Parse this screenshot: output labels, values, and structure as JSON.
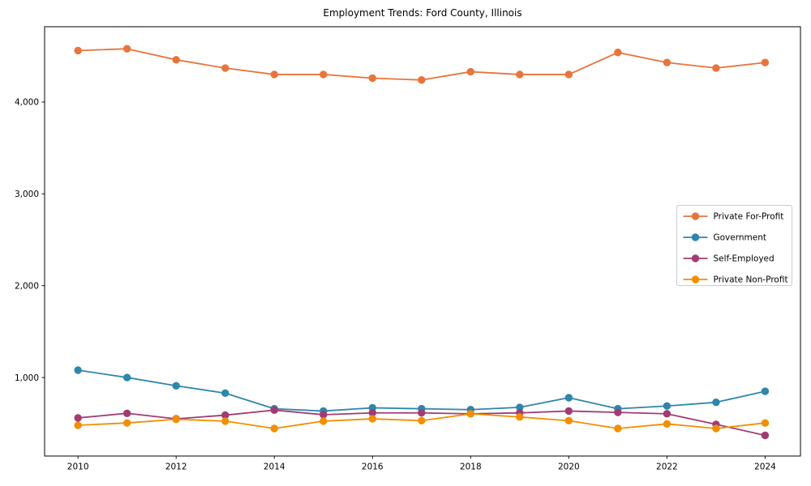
{
  "chart_data": {
    "type": "line",
    "title": "Employment Trends: Ford County, Illinois",
    "xlabel": "",
    "ylabel": "",
    "grid": false,
    "legend_position": "center-right",
    "xlim": [
      2009.32,
      2024.72
    ],
    "ylim": [
      145,
      4820
    ],
    "x_ticks": [
      2010,
      2012,
      2014,
      2016,
      2018,
      2020,
      2022,
      2024
    ],
    "y_ticks": [
      1000,
      2000,
      3000,
      4000
    ],
    "y_tick_labels": [
      "1,000",
      "2,000",
      "3,000",
      "4,000"
    ],
    "x": [
      2010,
      2011,
      2012,
      2013,
      2014,
      2015,
      2016,
      2017,
      2018,
      2019,
      2020,
      2021,
      2022,
      2023,
      2024
    ],
    "series": [
      {
        "name": "Private For-Profit",
        "color": "#E8743B",
        "values": [
          4560,
          4580,
          4460,
          4370,
          4300,
          4300,
          4260,
          4240,
          4330,
          4300,
          4300,
          4540,
          4430,
          4370,
          4430
        ]
      },
      {
        "name": "Government",
        "color": "#2E86AB",
        "values": [
          1080,
          1000,
          910,
          830,
          660,
          635,
          670,
          660,
          650,
          675,
          780,
          660,
          690,
          730,
          850
        ]
      },
      {
        "name": "Self-Employed",
        "color": "#A23B72",
        "values": [
          560,
          610,
          550,
          590,
          645,
          595,
          615,
          615,
          605,
          615,
          635,
          620,
          605,
          490,
          370
        ]
      },
      {
        "name": "Private Non-Profit",
        "color": "#F18F01",
        "values": [
          480,
          505,
          545,
          525,
          445,
          525,
          550,
          530,
          605,
          570,
          530,
          445,
          495,
          445,
          505
        ]
      }
    ]
  }
}
